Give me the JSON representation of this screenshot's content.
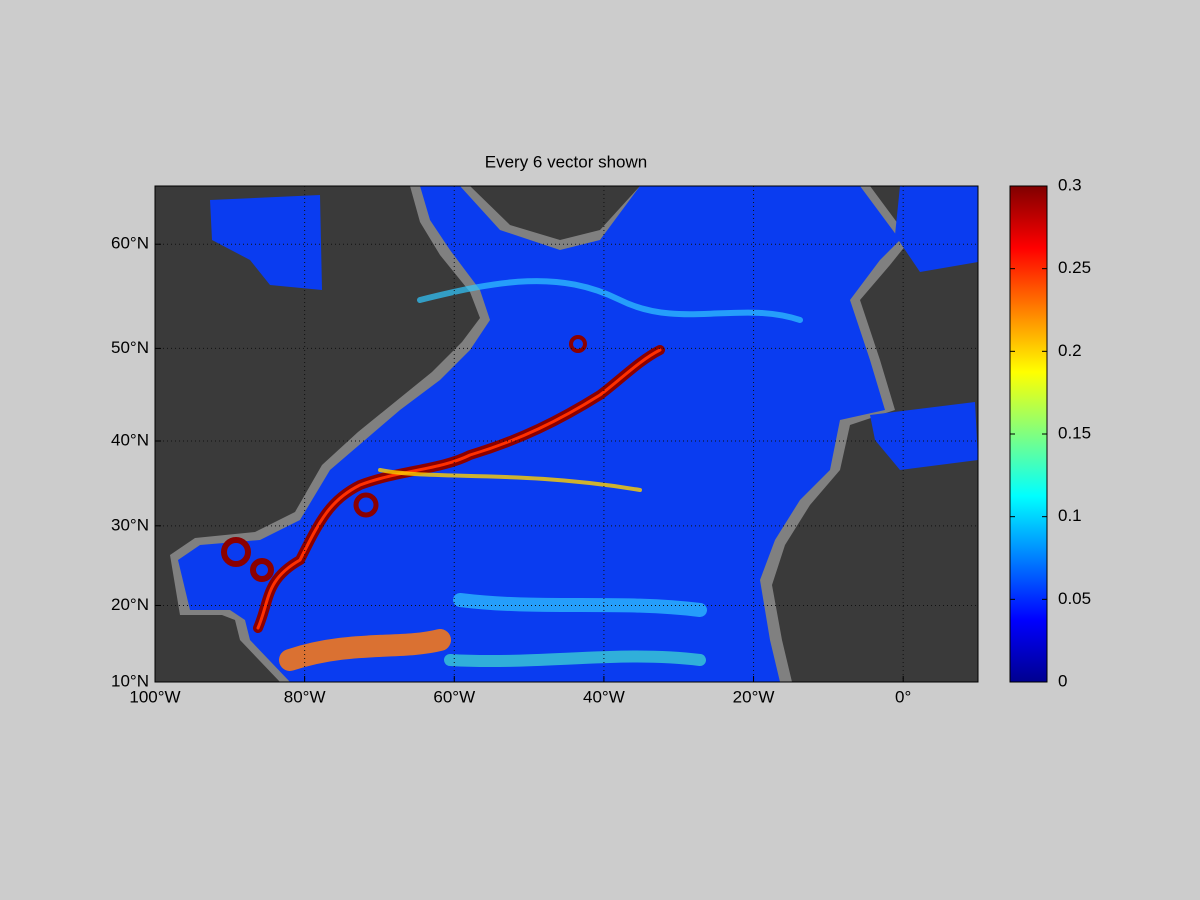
{
  "chart_data": {
    "type": "map",
    "title": "Every 6 vector shown",
    "projection": "miller",
    "xlim": [
      -100,
      10
    ],
    "ylim": [
      10,
      65
    ],
    "xticks": [
      {
        "value": -100,
        "label": "100°W"
      },
      {
        "value": -80,
        "label": "80°W"
      },
      {
        "value": -60,
        "label": "60°W"
      },
      {
        "value": -40,
        "label": "40°W"
      },
      {
        "value": -20,
        "label": "20°W"
      },
      {
        "value": 0,
        "label": "0°"
      }
    ],
    "yticks": [
      {
        "value": 10,
        "label": "10°N"
      },
      {
        "value": 20,
        "label": "20°N"
      },
      {
        "value": 30,
        "label": "30°N"
      },
      {
        "value": 40,
        "label": "40°N"
      },
      {
        "value": 50,
        "label": "50°N"
      },
      {
        "value": 60,
        "label": "60°N"
      }
    ],
    "grid": true,
    "colorbar": {
      "colormap": "jet",
      "lim": [
        0,
        0.3
      ],
      "ticks": [
        0,
        0.05,
        0.1,
        0.15,
        0.2,
        0.25,
        0.3
      ]
    }
  }
}
